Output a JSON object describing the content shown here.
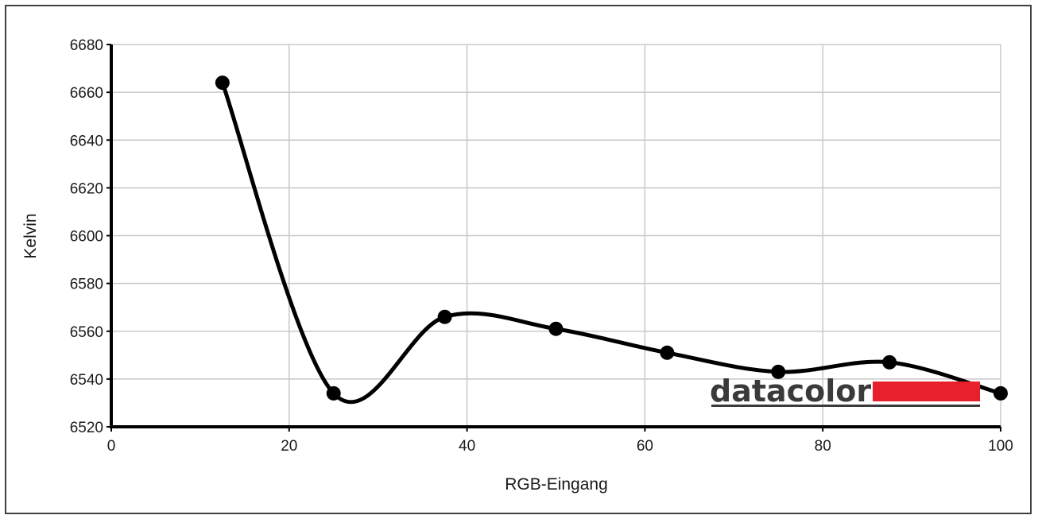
{
  "chart_data": {
    "type": "line",
    "title": "",
    "xlabel": "RGB-Eingang",
    "ylabel": "Kelvin",
    "xlim": [
      0,
      100
    ],
    "ylim": [
      6520,
      6680
    ],
    "x_ticks": [
      0,
      20,
      40,
      60,
      80,
      100
    ],
    "y_ticks": [
      6520,
      6540,
      6560,
      6580,
      6600,
      6620,
      6640,
      6660,
      6680
    ],
    "grid": true,
    "smooth": true,
    "series": [
      {
        "x": [
          12.5,
          25,
          37.5,
          50,
          62.5,
          75,
          87.5,
          100
        ],
        "y": [
          6664,
          6534,
          6566,
          6561,
          6551,
          6543,
          6547,
          6534
        ],
        "color": "#000000"
      }
    ]
  },
  "logo": {
    "text": "datacolor",
    "bar_color": "#e8202e",
    "text_color": "#3a3a3a"
  }
}
